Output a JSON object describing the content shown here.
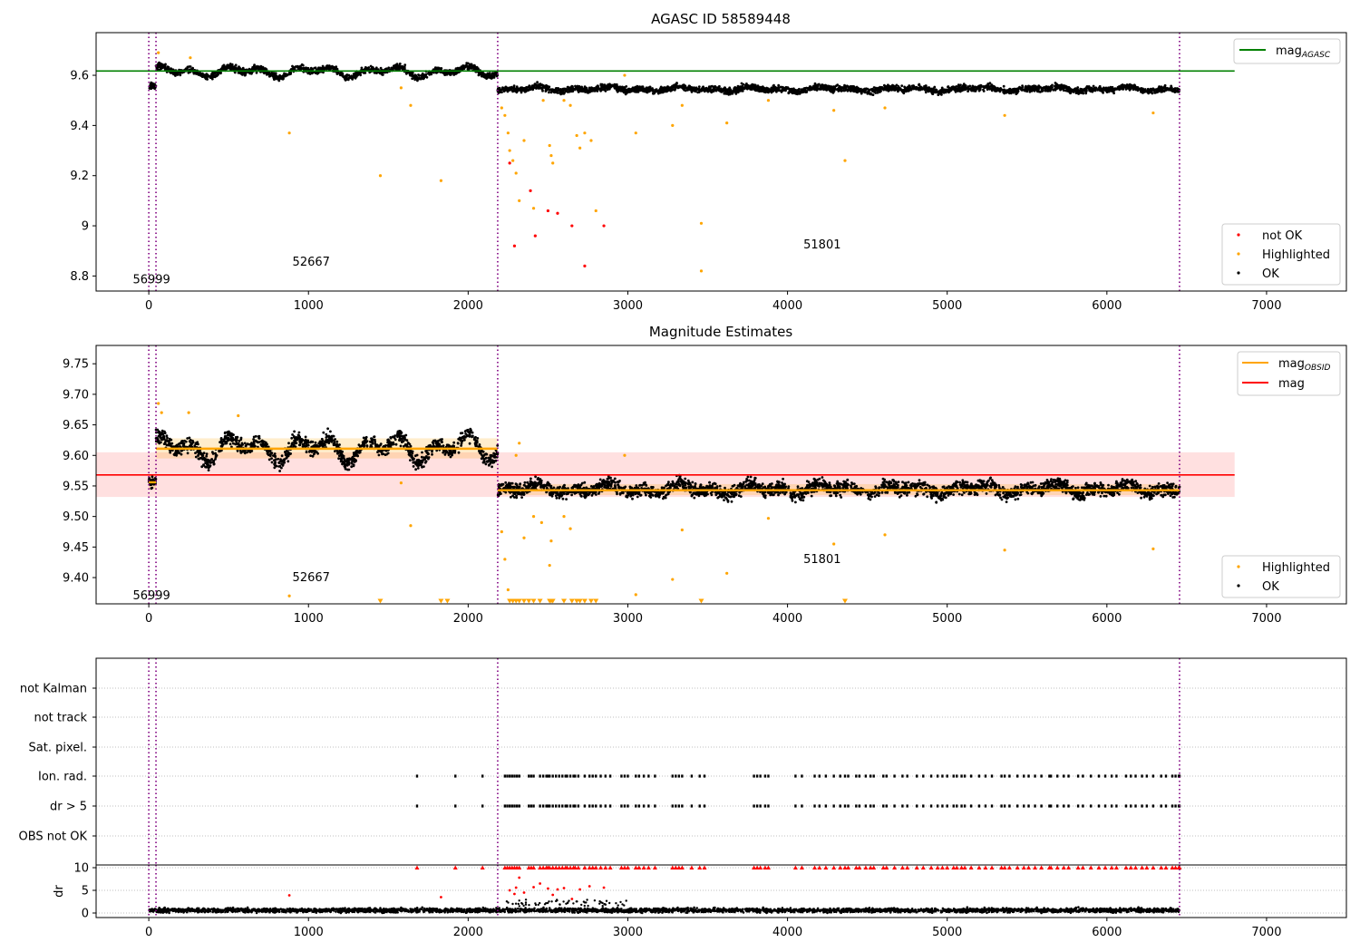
{
  "chart_data": [
    {
      "type": "scatter",
      "title": "AGASC ID 58589448",
      "xlabel": "",
      "ylabel": "",
      "xlim": [
        -330,
        7500
      ],
      "ylim": [
        8.74,
        9.77
      ],
      "xticks": [
        0,
        1000,
        2000,
        3000,
        4000,
        5000,
        6000,
        7000
      ],
      "yticks": [
        8.8,
        9.0,
        9.2,
        9.4,
        9.6
      ],
      "vlines": [
        0,
        45,
        2185,
        6455
      ],
      "obsids": [
        {
          "label": "56999",
          "x": 0,
          "y": 8.785
        },
        {
          "label": "52667",
          "x": 1000,
          "y": 8.855
        },
        {
          "label": "51801",
          "x": 4200,
          "y": 8.925
        }
      ],
      "hline": {
        "name": "mag_AGASC",
        "value": 9.617,
        "color": "#008000"
      },
      "series": [
        {
          "name": "not OK",
          "color": "#ff0000",
          "points": [
            [
              2260,
              9.25
            ],
            [
              2290,
              8.92
            ],
            [
              2390,
              9.14
            ],
            [
              2420,
              8.96
            ],
            [
              2500,
              9.06
            ],
            [
              2560,
              9.05
            ],
            [
              2650,
              9.0
            ],
            [
              2730,
              8.84
            ],
            [
              2850,
              9.0
            ]
          ]
        },
        {
          "name": "Highlighted",
          "color": "#ffa500",
          "points": [
            [
              60,
              9.69
            ],
            [
              260,
              9.67
            ],
            [
              880,
              9.37
            ],
            [
              1450,
              9.2
            ],
            [
              1580,
              9.55
            ],
            [
              1640,
              9.48
            ],
            [
              1830,
              9.18
            ],
            [
              2210,
              9.47
            ],
            [
              2230,
              9.44
            ],
            [
              2250,
              9.37
            ],
            [
              2260,
              9.3
            ],
            [
              2280,
              9.26
            ],
            [
              2300,
              9.21
            ],
            [
              2320,
              9.1
            ],
            [
              2350,
              9.34
            ],
            [
              2410,
              9.07
            ],
            [
              2470,
              9.5
            ],
            [
              2510,
              9.32
            ],
            [
              2520,
              9.28
            ],
            [
              2530,
              9.25
            ],
            [
              2600,
              9.5
            ],
            [
              2640,
              9.48
            ],
            [
              2680,
              9.36
            ],
            [
              2700,
              9.31
            ],
            [
              2730,
              9.37
            ],
            [
              2770,
              9.34
            ],
            [
              2800,
              9.06
            ],
            [
              2980,
              9.6
            ],
            [
              3050,
              9.37
            ],
            [
              3280,
              9.4
            ],
            [
              3340,
              9.48
            ],
            [
              3460,
              8.82
            ],
            [
              3460,
              9.01
            ],
            [
              3620,
              9.41
            ],
            [
              3880,
              9.5
            ],
            [
              4290,
              9.46
            ],
            [
              4360,
              9.26
            ],
            [
              4610,
              9.47
            ],
            [
              5360,
              9.44
            ],
            [
              6290,
              9.45
            ]
          ]
        },
        {
          "name": "OK",
          "color": "#000000",
          "bands": [
            {
              "x": [
                0,
                45
              ],
              "center": 9.557,
              "spread": 0.012,
              "amp": 0.0,
              "n": 40
            },
            {
              "x": [
                45,
                2185
              ],
              "center": 9.615,
              "spread": 0.012,
              "amp": 0.025,
              "n": 1300
            },
            {
              "x": [
                2185,
                6455
              ],
              "center": 9.545,
              "spread": 0.012,
              "amp": 0.01,
              "n": 2600
            }
          ]
        }
      ],
      "legend_top": [
        {
          "label": "mag",
          "sub": "AGASC",
          "color": "#008000"
        }
      ],
      "legend_bottom": [
        {
          "label": "not OK",
          "color": "#ff0000"
        },
        {
          "label": "Highlighted",
          "color": "#ffa500"
        },
        {
          "label": "OK",
          "color": "#000000"
        }
      ]
    },
    {
      "type": "scatter",
      "title": "Magnitude Estimates",
      "xlabel": "",
      "ylabel": "",
      "xlim": [
        -330,
        7500
      ],
      "ylim": [
        9.357,
        9.78
      ],
      "xticks": [
        0,
        1000,
        2000,
        3000,
        4000,
        5000,
        6000,
        7000
      ],
      "yticks": [
        9.4,
        9.45,
        9.5,
        9.55,
        9.6,
        9.65,
        9.7,
        9.75
      ],
      "ytick_labels": [
        "9.40",
        "9.45",
        "9.50",
        "9.55",
        "9.60",
        "9.65",
        "9.70",
        "9.75"
      ],
      "vlines": [
        0,
        45,
        2185,
        6455
      ],
      "obsids": [
        {
          "label": "56999",
          "x": 0,
          "y": 9.37
        },
        {
          "label": "52667",
          "x": 1000,
          "y": 9.4
        },
        {
          "label": "51801",
          "x": 4200,
          "y": 9.43
        }
      ],
      "mag": {
        "value": 9.568,
        "low": 9.532,
        "high": 9.605,
        "x": [
          -330,
          6800
        ],
        "color": "#ff0000"
      },
      "mag_obsid": [
        {
          "x": [
            0,
            45
          ],
          "value": 9.556,
          "low": 9.545,
          "high": 9.567
        },
        {
          "x": [
            45,
            2185
          ],
          "value": 9.611,
          "low": 9.595,
          "high": 9.628
        },
        {
          "x": [
            2185,
            6455
          ],
          "value": 9.543,
          "low": 9.535,
          "high": 9.553
        }
      ],
      "series": [
        {
          "name": "Highlighted",
          "color": "#ffa500",
          "points": [
            [
              60,
              9.685
            ],
            [
              80,
              9.67
            ],
            [
              250,
              9.67
            ],
            [
              560,
              9.665
            ],
            [
              880,
              9.37
            ],
            [
              1580,
              9.555
            ],
            [
              1640,
              9.485
            ],
            [
              2210,
              9.475
            ],
            [
              2230,
              9.43
            ],
            [
              2250,
              9.38
            ],
            [
              2300,
              9.6
            ],
            [
              2320,
              9.62
            ],
            [
              2350,
              9.465
            ],
            [
              2410,
              9.5
            ],
            [
              2460,
              9.49
            ],
            [
              2510,
              9.42
            ],
            [
              2520,
              9.46
            ],
            [
              2600,
              9.5
            ],
            [
              2640,
              9.48
            ],
            [
              2980,
              9.6
            ],
            [
              3050,
              9.372
            ],
            [
              3280,
              9.397
            ],
            [
              3340,
              9.478
            ],
            [
              3620,
              9.407
            ],
            [
              3880,
              9.497
            ],
            [
              4290,
              9.455
            ],
            [
              4610,
              9.47
            ],
            [
              5360,
              9.445
            ],
            [
              6290,
              9.447
            ]
          ]
        },
        {
          "name": "Highlighted (below range)",
          "color": "#ffa500",
          "markers": [
            1450,
            1830,
            1870,
            2260,
            2280,
            2300,
            2320,
            2350,
            2380,
            2410,
            2450,
            2510,
            2520,
            2530,
            2600,
            2650,
            2680,
            2700,
            2730,
            2770,
            2800,
            3460,
            4360
          ]
        },
        {
          "name": "OK",
          "color": "#000000",
          "bands": [
            {
              "x": [
                0,
                45
              ],
              "center": 9.556,
              "spread": 0.008,
              "amp": 0.0,
              "n": 40
            },
            {
              "x": [
                45,
                2185
              ],
              "center": 9.612,
              "spread": 0.012,
              "amp": 0.025,
              "n": 1300
            },
            {
              "x": [
                2185,
                6455
              ],
              "center": 9.545,
              "spread": 0.011,
              "amp": 0.01,
              "n": 2600
            }
          ]
        }
      ],
      "legend_top": [
        {
          "label": "mag",
          "sub": "OBSID",
          "color": "#ffa500"
        },
        {
          "label": "mag",
          "sub": "",
          "color": "#ff0000"
        }
      ],
      "legend_bottom": [
        {
          "label": "Highlighted",
          "color": "#ffa500"
        },
        {
          "label": "OK",
          "color": "#000000"
        }
      ]
    },
    {
      "type": "scatter",
      "title": "",
      "xlabel": "",
      "ylabel": "",
      "xlim": [
        -330,
        7500
      ],
      "vlines": [
        0,
        45,
        2185,
        6455
      ],
      "flag_rows": [
        "not Kalman",
        "not track",
        "Sat. pixel.",
        "Ion. rad.",
        "dr > 5",
        "OBS not OK"
      ],
      "flag_events": [
        1680,
        1920,
        2090,
        2230,
        2245,
        2260,
        2275,
        2290,
        2305,
        2320,
        2380,
        2395,
        2410,
        2450,
        2470,
        2490,
        2500,
        2510,
        2530,
        2550,
        2570,
        2590,
        2610,
        2620,
        2640,
        2660,
        2670,
        2690,
        2730,
        2760,
        2780,
        2800,
        2830,
        2860,
        2890,
        2960,
        2980,
        3000,
        3050,
        3070,
        3100,
        3130,
        3170,
        3280,
        3300,
        3320,
        3340,
        3400,
        3450,
        3480,
        3790,
        3810,
        3830,
        3860,
        3880,
        4050,
        4090,
        4170,
        4200,
        4240,
        4290,
        4330,
        4360,
        4380,
        4430,
        4450,
        4490,
        4520,
        4540,
        4600,
        4620,
        4670,
        4720,
        4750,
        4810,
        4850,
        4900,
        4940,
        4970,
        5000,
        5040,
        5060,
        5090,
        5110,
        5150,
        5200,
        5240,
        5280,
        5340,
        5360,
        5390,
        5440,
        5480,
        5510,
        5550,
        5590,
        5640,
        5650,
        5690,
        5730,
        5760,
        5820,
        5850,
        5900,
        5950,
        5990,
        6030,
        6060,
        6120,
        6150,
        6180,
        6220,
        6250,
        6290,
        6340,
        6370,
        6410,
        6430,
        6450,
        6455
      ],
      "dr": {
        "ylabel": "dr",
        "ylim": [
          -1,
          10.6
        ],
        "yticks": [
          0,
          5,
          10
        ],
        "clip_value": 10,
        "clipped_color": "#ff0000",
        "ok_color": "#000000",
        "outliers": [
          [
            880,
            3.9
          ],
          [
            1830,
            3.5
          ],
          [
            2260,
            5.0
          ],
          [
            2290,
            4.2
          ],
          [
            2300,
            5.6
          ],
          [
            2320,
            7.8
          ],
          [
            2350,
            4.5
          ],
          [
            2410,
            5.7
          ],
          [
            2450,
            6.5
          ],
          [
            2500,
            5.4
          ],
          [
            2530,
            4.0
          ],
          [
            2560,
            5.2
          ],
          [
            2600,
            5.5
          ],
          [
            2650,
            3.1
          ],
          [
            2700,
            5.2
          ],
          [
            2760,
            5.9
          ],
          [
            2850,
            5.6
          ]
        ]
      }
    }
  ]
}
